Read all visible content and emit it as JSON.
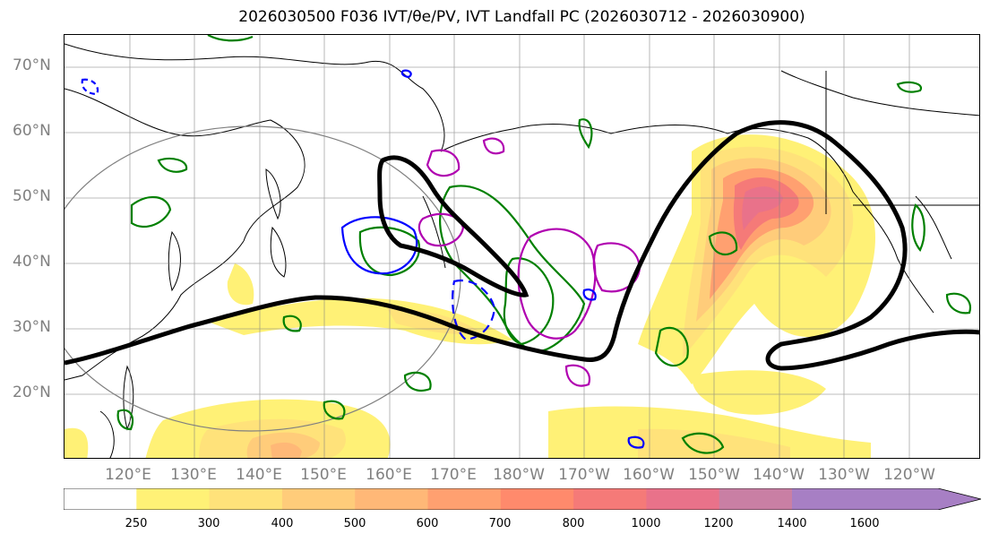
{
  "title": "2026030500 F036 IVT/θe/PV, IVT Landfall PC (2026030712 - 2026030900)",
  "lat_labels": [
    "70°N",
    "60°N",
    "50°N",
    "40°N",
    "30°N",
    "20°N"
  ],
  "lon_labels": [
    "120°E",
    "130°E",
    "140°E",
    "150°E",
    "160°E",
    "170°E",
    "180°W",
    "170°W",
    "160°W",
    "150°W",
    "140°W",
    "130°W",
    "120°W"
  ],
  "colorbar": {
    "ticks": [
      "250",
      "300",
      "400",
      "500",
      "600",
      "700",
      "800",
      "1000",
      "1200",
      "1400",
      "1600"
    ],
    "colors": [
      "#ffffff",
      "#fff176",
      "#ffe27a",
      "#ffcc7a",
      "#ffb877",
      "#ffa070",
      "#ff8a6c",
      "#f57a78",
      "#e9728a",
      "#c97fa4",
      "#a77fc4"
    ]
  },
  "contour_colors": {
    "ivt_landfall_pc": "#000000",
    "theta_e": "#008000",
    "pv_positive": "#b000b0",
    "pv_negative": "#0000ff",
    "radius_circle": "#808080"
  }
}
